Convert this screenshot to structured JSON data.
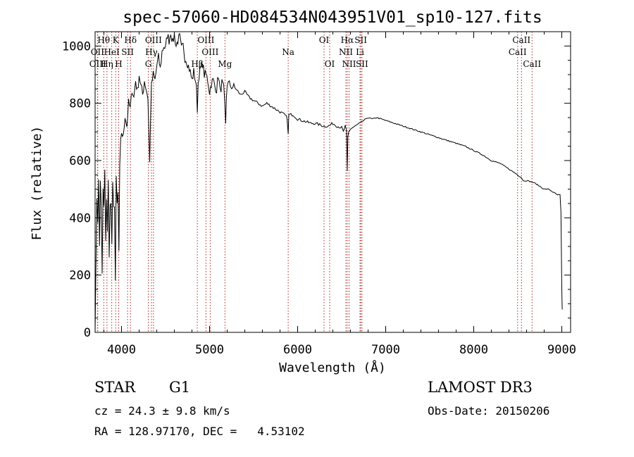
{
  "chart_data": {
    "type": "line",
    "title": "spec-57060-HD084534N043951V01_sp10-127.fits",
    "xlabel": "Wavelength (Å)",
    "ylabel": "Flux (relative)",
    "xlim": [
      3700,
      9100
    ],
    "ylim": [
      0,
      1050
    ],
    "xticks": [
      4000,
      5000,
      6000,
      7000,
      8000,
      9000
    ],
    "yticks": [
      0,
      200,
      400,
      600,
      800,
      1000
    ],
    "x_minor_step": 200,
    "y_minor_step": 50,
    "series": [
      {
        "name": "spectrum",
        "x": [
          3700,
          3710,
          3720,
          3730,
          3740,
          3750,
          3760,
          3770,
          3780,
          3790,
          3800,
          3810,
          3820,
          3830,
          3840,
          3850,
          3860,
          3870,
          3880,
          3890,
          3900,
          3910,
          3920,
          3930,
          3940,
          3950,
          3960,
          3970,
          3980,
          3990,
          4000,
          4020,
          4040,
          4060,
          4080,
          4100,
          4120,
          4140,
          4160,
          4180,
          4200,
          4220,
          4240,
          4260,
          4280,
          4300,
          4310,
          4320,
          4330,
          4340,
          4360,
          4380,
          4400,
          4420,
          4440,
          4460,
          4480,
          4500,
          4520,
          4540,
          4560,
          4580,
          4600,
          4620,
          4640,
          4660,
          4680,
          4700,
          4720,
          4740,
          4760,
          4780,
          4800,
          4820,
          4840,
          4850,
          4861,
          4870,
          4880,
          4900,
          4920,
          4940,
          4960,
          4980,
          5000,
          5020,
          5040,
          5060,
          5080,
          5100,
          5120,
          5140,
          5160,
          5170,
          5183,
          5190,
          5200,
          5250,
          5300,
          5350,
          5400,
          5450,
          5500,
          5550,
          5600,
          5650,
          5700,
          5750,
          5800,
          5850,
          5880,
          5893,
          5900,
          5950,
          6000,
          6050,
          6100,
          6150,
          6200,
          6250,
          6300,
          6350,
          6400,
          6450,
          6500,
          6520,
          6540,
          6555,
          6563,
          6570,
          6580,
          6600,
          6650,
          6700,
          6750,
          6800,
          6850,
          6900,
          6950,
          7000,
          7050,
          7100,
          7150,
          7200,
          7300,
          7400,
          7500,
          7600,
          7700,
          7800,
          7900,
          8000,
          8100,
          8200,
          8300,
          8400,
          8500,
          8542,
          8560,
          8600,
          8662,
          8700,
          8750,
          8800,
          8850,
          8900,
          8950,
          8980,
          8990,
          9000,
          9005
        ],
        "y": [
          20,
          230,
          480,
          400,
          520,
          300,
          540,
          420,
          190,
          500,
          430,
          560,
          300,
          480,
          360,
          520,
          250,
          470,
          440,
          310,
          500,
          420,
          460,
          180,
          520,
          440,
          480,
          280,
          560,
          650,
          700,
          680,
          760,
          720,
          800,
          780,
          850,
          820,
          880,
          840,
          900,
          860,
          830,
          880,
          850,
          820,
          700,
          590,
          760,
          860,
          900,
          880,
          930,
          960,
          920,
          980,
          1000,
          990,
          1040,
          1020,
          1050,
          1010,
          1040,
          1000,
          1020,
          1030,
          990,
          1000,
          960,
          950,
          930,
          910,
          880,
          910,
          880,
          850,
          780,
          870,
          900,
          920,
          940,
          900,
          900,
          880,
          840,
          870,
          880,
          860,
          850,
          900,
          840,
          870,
          850,
          800,
          720,
          820,
          870,
          860,
          850,
          830,
          840,
          820,
          810,
          800,
          790,
          800,
          790,
          780,
          770,
          760,
          750,
          690,
          760,
          760,
          745,
          740,
          735,
          730,
          730,
          725,
          720,
          720,
          730,
          720,
          715,
          700,
          720,
          700,
          560,
          680,
          700,
          710,
          720,
          730,
          740,
          750,
          745,
          750,
          745,
          740,
          735,
          730,
          725,
          720,
          710,
          700,
          690,
          680,
          670,
          660,
          650,
          635,
          620,
          600,
          590,
          570,
          550,
          540,
          530,
          530,
          525,
          520,
          510,
          500,
          500,
          490,
          480,
          480,
          420,
          150,
          80
        ]
      }
    ],
    "spectral_lines": [
      {
        "name": "Hθ",
        "wavelength": 3798,
        "row": 0
      },
      {
        "name": "OII",
        "wavelength": 3727,
        "row": 1
      },
      {
        "name": "OIII",
        "wavelength": 3730,
        "row": 2
      },
      {
        "name": "Hη",
        "wavelength": 3835,
        "row": 2
      },
      {
        "name": "HeI",
        "wavelength": 3889,
        "row": 1
      },
      {
        "name": "K",
        "wavelength": 3934,
        "row": 0
      },
      {
        "name": "SII",
        "wavelength": 4069,
        "row": 1
      },
      {
        "name": "H",
        "wavelength": 3968,
        "row": 2
      },
      {
        "name": "Hδ",
        "wavelength": 4102,
        "row": 0
      },
      {
        "name": "OIII",
        "wavelength": 4363,
        "row": 0
      },
      {
        "name": "Hγ",
        "wavelength": 4340,
        "row": 1
      },
      {
        "name": "G",
        "wavelength": 4304,
        "row": 2
      },
      {
        "name": "OIII",
        "wavelength": 4959,
        "row": 0
      },
      {
        "name": "OIII",
        "wavelength": 5007,
        "row": 1
      },
      {
        "name": "Hβ",
        "wavelength": 4861,
        "row": 2
      },
      {
        "name": "Mg",
        "wavelength": 5175,
        "row": 2
      },
      {
        "name": "Na",
        "wavelength": 5893,
        "row": 1
      },
      {
        "name": "OI",
        "wavelength": 6300,
        "row": 0
      },
      {
        "name": "OI",
        "wavelength": 6364,
        "row": 2
      },
      {
        "name": "Hα",
        "wavelength": 6563,
        "row": 0
      },
      {
        "name": "NII",
        "wavelength": 6548,
        "row": 1
      },
      {
        "name": "NII",
        "wavelength": 6584,
        "row": 2
      },
      {
        "name": "SII",
        "wavelength": 6717,
        "row": 0
      },
      {
        "name": "Li",
        "wavelength": 6708,
        "row": 1
      },
      {
        "name": "SII",
        "wavelength": 6731,
        "row": 2
      },
      {
        "name": "CaII",
        "wavelength": 8542,
        "row": 0
      },
      {
        "name": "CaII",
        "wavelength": 8498,
        "row": 1
      },
      {
        "name": "CaII",
        "wavelength": 8662,
        "row": 2
      }
    ],
    "line_color": "#000000",
    "marker_color": "#b22222"
  },
  "info": {
    "object_type": "STAR",
    "subclass": "G1",
    "survey": "LAMOST DR3",
    "cz": "cz = 24.3 ± 9.8 km/s",
    "obs_date": "Obs-Date: 20150206",
    "coords": "RA = 128.97170, DEC =   4.53102"
  }
}
